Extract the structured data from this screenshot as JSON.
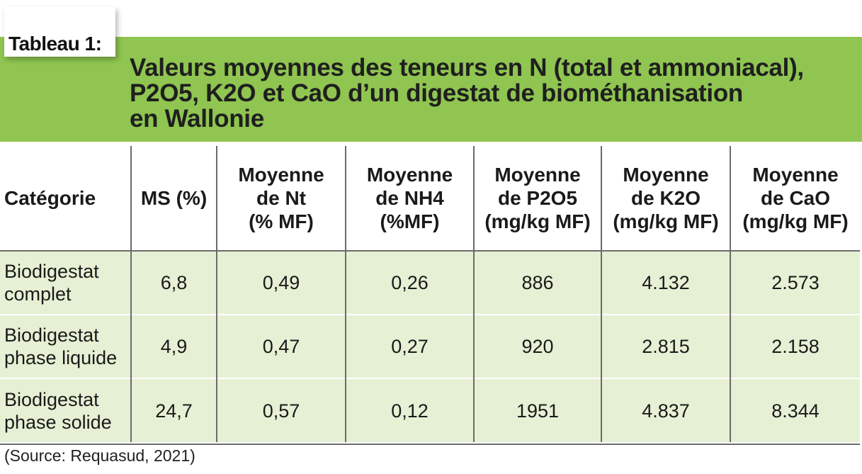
{
  "tag_label": "Tableau 1:",
  "title_lines": [
    "Valeurs moyennes des teneurs en N (total et ammoniacal),",
    "P2O5, K2O et CaO d’un digestat de biométhanisation",
    "en Wallonie"
  ],
  "headers": [
    [
      "Catégorie"
    ],
    [
      "MS (%)"
    ],
    [
      "Moyenne",
      "de Nt",
      "(% MF)"
    ],
    [
      "Moyenne",
      "de NH4",
      "(%MF)"
    ],
    [
      "Moyenne",
      "de P2O5",
      "(mg/kg MF)"
    ],
    [
      "Moyenne",
      "de K2O",
      "(mg/kg MF)"
    ],
    [
      "Moyenne",
      "de CaO",
      "(mg/kg MF)"
    ]
  ],
  "rows": [
    {
      "category": [
        "Biodigestat",
        "complet"
      ],
      "values": [
        "6,8",
        "0,49",
        "0,26",
        "886",
        "4.132",
        "2.573"
      ]
    },
    {
      "category": [
        "Biodigestat",
        "phase liquide"
      ],
      "values": [
        "4,9",
        "0,47",
        "0,27",
        "920",
        "2.815",
        "2.158"
      ]
    },
    {
      "category": [
        "Biodigestat",
        "phase solide"
      ],
      "values": [
        "24,7",
        "0,57",
        "0,12",
        "1951",
        "4.837",
        "8.344"
      ]
    }
  ],
  "source": "(Source: Requasud, 2021)",
  "colors": {
    "title_band": "#8fc550",
    "row_background": "#e6f0d4",
    "grid_lines": "#6b6b6b"
  }
}
